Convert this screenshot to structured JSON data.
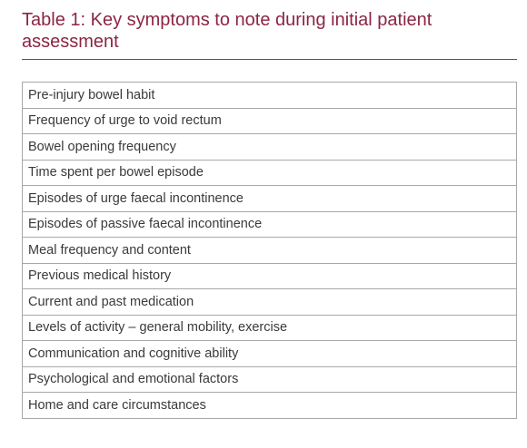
{
  "title": "Table 1: Key symptoms to note during initial patient assessment",
  "colors": {
    "title": "#8c2544",
    "text": "#3a3a3a",
    "border": "#a8a8a8"
  },
  "rows": [
    "Pre-injury bowel habit",
    "Frequency of urge to void rectum",
    "Bowel opening frequency",
    "Time spent per bowel episode",
    "Episodes of urge faecal incontinence",
    "Episodes of passive faecal incontinence",
    "Meal frequency and content",
    "Previous medical history",
    "Current and past medication",
    "Levels of activity – general mobility, exercise",
    "Communication and cognitive ability",
    "Psychological and emotional factors",
    "Home and care circumstances"
  ]
}
